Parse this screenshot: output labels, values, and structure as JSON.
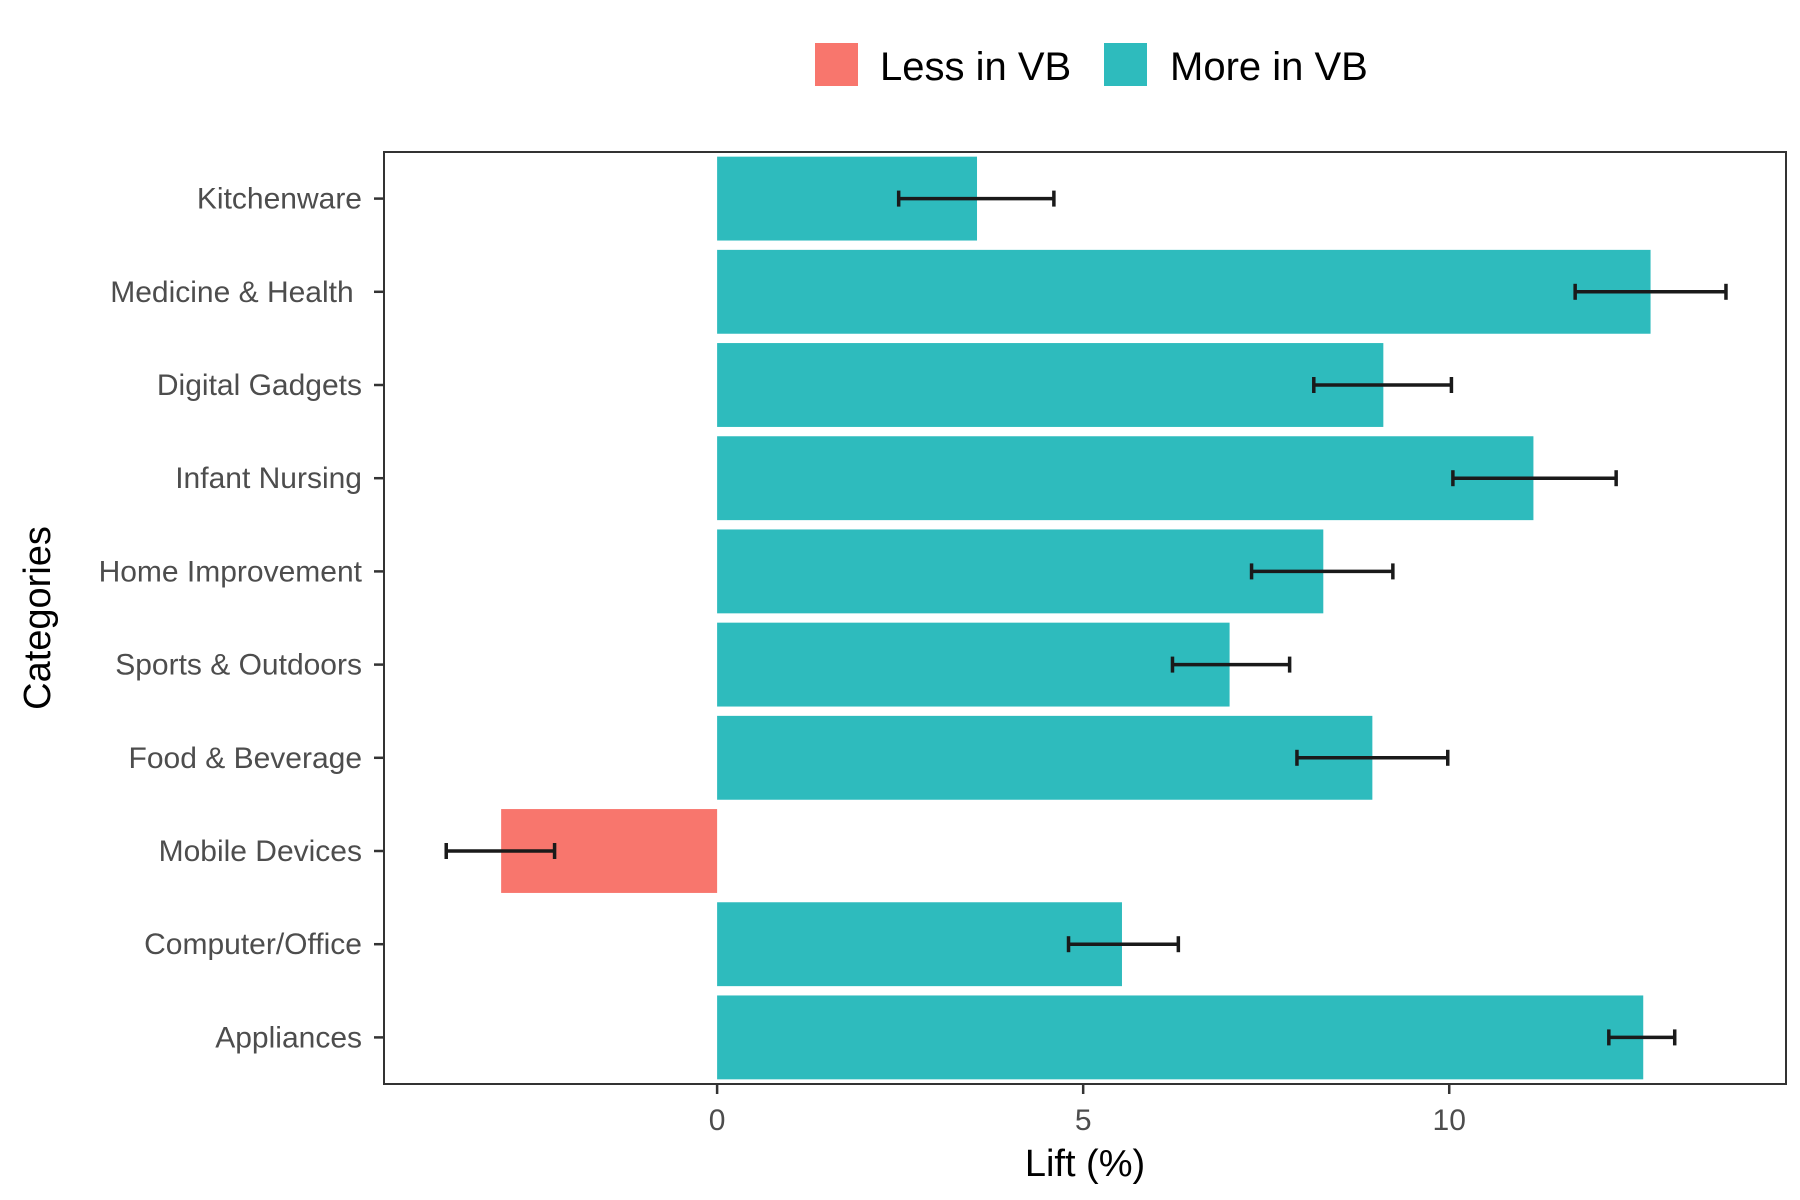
{
  "chart_data": {
    "type": "bar",
    "orientation": "horizontal",
    "title": "",
    "xlabel": "Lift (%)",
    "ylabel": "Categories",
    "xlim": [
      -4.55,
      14.6
    ],
    "xticks": [
      0,
      5,
      10
    ],
    "grid": false,
    "legend_position": "top",
    "legend": [
      {
        "key": "less",
        "label": "Less in VB",
        "color": "#F8766D"
      },
      {
        "key": "more",
        "label": "More in VB",
        "color": "#2EBBBD"
      }
    ],
    "categories": [
      "Kitchenware",
      "Medicine & Health ",
      "Digital Gadgets",
      "Infant Nursing",
      "Home Improvement",
      "Sports & Outdoors",
      "Food & Beverage",
      "Mobile Devices",
      "Computer/Office",
      "Appliances"
    ],
    "values": [
      3.55,
      12.75,
      9.1,
      11.15,
      8.28,
      7.0,
      8.95,
      -2.95,
      5.53,
      12.65
    ],
    "error_low": [
      2.48,
      11.72,
      8.15,
      10.05,
      7.3,
      6.22,
      7.92,
      -3.7,
      4.8,
      12.18
    ],
    "error_high": [
      4.6,
      13.78,
      10.03,
      12.28,
      9.23,
      7.82,
      9.98,
      -2.22,
      6.3,
      13.08
    ],
    "groups": [
      "more",
      "more",
      "more",
      "more",
      "more",
      "more",
      "more",
      "less",
      "more",
      "more"
    ]
  }
}
